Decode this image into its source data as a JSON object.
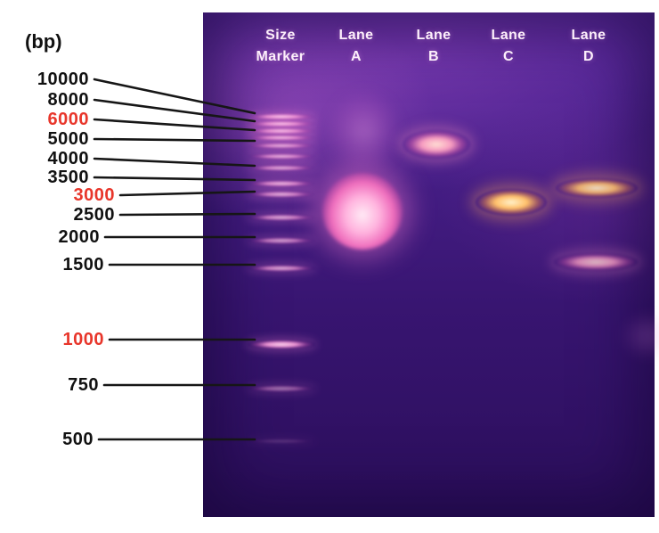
{
  "figure": {
    "unit_label": "(bp)",
    "marker_scale": [
      {
        "label": "10000",
        "highlight": false
      },
      {
        "label": "8000",
        "highlight": false
      },
      {
        "label": "6000",
        "highlight": true
      },
      {
        "label": "5000",
        "highlight": false
      },
      {
        "label": "4000",
        "highlight": false
      },
      {
        "label": "3500",
        "highlight": false
      },
      {
        "label": "3000",
        "highlight": true
      },
      {
        "label": "2500",
        "highlight": false
      },
      {
        "label": "2000",
        "highlight": false
      },
      {
        "label": "1500",
        "highlight": false
      },
      {
        "label": "1000",
        "highlight": true
      },
      {
        "label": "750",
        "highlight": false
      },
      {
        "label": "500",
        "highlight": false
      }
    ],
    "lane_headers": [
      {
        "line1": "Size",
        "line2": "Marker"
      },
      {
        "line1": "Lane",
        "line2": "A"
      },
      {
        "line1": "Lane",
        "line2": "B"
      },
      {
        "line1": "Lane",
        "line2": "C"
      },
      {
        "line1": "Lane",
        "line2": "D"
      }
    ],
    "lanes_content": [
      {
        "name": "Size Marker",
        "bands_bp": [
          10000,
          8000,
          6000,
          5000,
          4000,
          3500,
          3000,
          2500,
          2000,
          1500,
          1000,
          750,
          500
        ]
      },
      {
        "name": "Lane A",
        "bands_bp": [
          2500
        ]
      },
      {
        "name": "Lane B",
        "bands_bp": [
          4500
        ]
      },
      {
        "name": "Lane C",
        "bands_bp": [
          3000
        ]
      },
      {
        "name": "Lane D",
        "bands_bp": [
          3000,
          1500
        ]
      }
    ],
    "colors": {
      "highlight_red": "#e8362b",
      "label_black": "#111111",
      "header_text": "#fdeffb",
      "gel_band_pink": "#f49ad8",
      "gel_band_orange": "#ffc06a",
      "gel_background_purple": "#381571"
    }
  }
}
